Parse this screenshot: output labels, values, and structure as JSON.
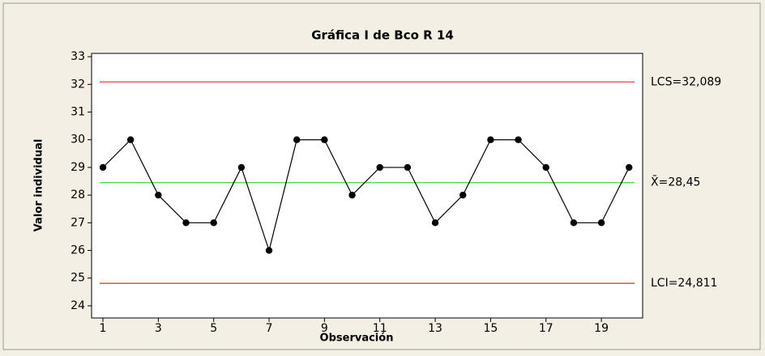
{
  "chart_data": {
    "type": "line",
    "title": "Gráfica I de Bco R 14",
    "xlabel": "Observación",
    "ylabel": "Valor individual",
    "x": [
      1,
      2,
      3,
      4,
      5,
      6,
      7,
      8,
      9,
      10,
      11,
      12,
      13,
      14,
      15,
      16,
      17,
      18,
      19,
      20
    ],
    "values": [
      29,
      30,
      28,
      27,
      27,
      29,
      26,
      30,
      30,
      28,
      29,
      29,
      27,
      28,
      30,
      30,
      29,
      27,
      27,
      29
    ],
    "color": "#000000",
    "xlim": [
      0.59,
      20.49
    ],
    "xticks": [
      1,
      3,
      5,
      7,
      9,
      11,
      13,
      15,
      17,
      19
    ],
    "ylim": [
      23.56,
      33.12
    ],
    "yticks": [
      24,
      25,
      26,
      27,
      28,
      29,
      30,
      31,
      32,
      33
    ],
    "control_lines": [
      {
        "value": 32.089,
        "label": "LCS=32,089",
        "color": "#e0403a"
      },
      {
        "value": 28.45,
        "label": "X̄=28,45",
        "color": "#3cd83c"
      },
      {
        "value": 24.811,
        "label": "LCI=24,811",
        "color": "#e0403a"
      }
    ]
  }
}
